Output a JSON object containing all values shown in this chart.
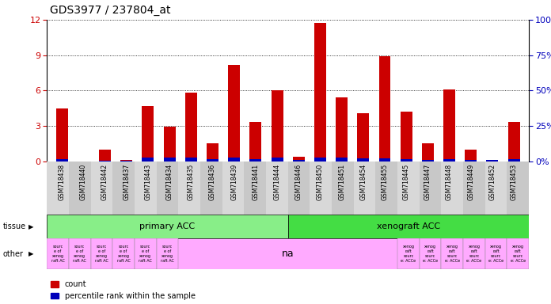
{
  "title": "GDS3977 / 237804_at",
  "samples": [
    "GSM718438",
    "GSM718440",
    "GSM718442",
    "GSM718437",
    "GSM718443",
    "GSM718434",
    "GSM718435",
    "GSM718436",
    "GSM718439",
    "GSM718441",
    "GSM718444",
    "GSM718446",
    "GSM718450",
    "GSM718451",
    "GSM718454",
    "GSM718455",
    "GSM718445",
    "GSM718447",
    "GSM718448",
    "GSM718449",
    "GSM718452",
    "GSM718453"
  ],
  "count": [
    4.5,
    0.0,
    1.0,
    0.1,
    4.7,
    2.9,
    5.8,
    1.5,
    8.2,
    3.3,
    6.0,
    0.4,
    11.7,
    5.4,
    4.1,
    8.9,
    4.2,
    1.5,
    6.1,
    1.0,
    0.1,
    3.3
  ],
  "percentile_left": [
    0.18,
    0.0,
    0.06,
    0.06,
    0.3,
    0.3,
    0.3,
    0.18,
    0.3,
    0.18,
    0.3,
    0.12,
    0.3,
    0.3,
    0.24,
    0.24,
    0.18,
    0.12,
    0.18,
    0.12,
    0.12,
    0.18
  ],
  "ylim_left": [
    0,
    12
  ],
  "ylim_right": [
    0,
    100
  ],
  "yticks_left": [
    0,
    3,
    6,
    9,
    12
  ],
  "yticks_right": [
    0,
    25,
    50,
    75,
    100
  ],
  "bar_color_red": "#cc0000",
  "bar_color_blue": "#0000bb",
  "tissue_primary_color": "#88ee88",
  "tissue_xenograft_color": "#44dd44",
  "other_color": "#ffaaff",
  "tissue_labels": [
    "primary ACC",
    "xenograft ACC"
  ],
  "primary_count": 11,
  "other_middle_text": "na",
  "bar_width": 0.55,
  "left_label_text_small": [
    "sourc\ne of\nxenog\nraft AC",
    "sourc\ne of\nxenog\nraft AC",
    "sourc\ne of\nxenog\nraft AC",
    "sourc\ne of\nxenog\nraft AC",
    "sourc\ne of\nxenog\nraft AC",
    "sourc\ne of\nxenog\nraft AC"
  ],
  "right_label_text_small": [
    "xenog\nraft\nsourc\ne: ACCe",
    "xenog\nraft\nsourc\ne: ACCe",
    "xenog\nraft\nsourc\ne: ACCe",
    "xenog\nraft\nsourc\ne: ACCe",
    "xenog\nraft\nsourc\ne: ACCe",
    "xenog\nraft\nsourc\ne: ACCe"
  ]
}
